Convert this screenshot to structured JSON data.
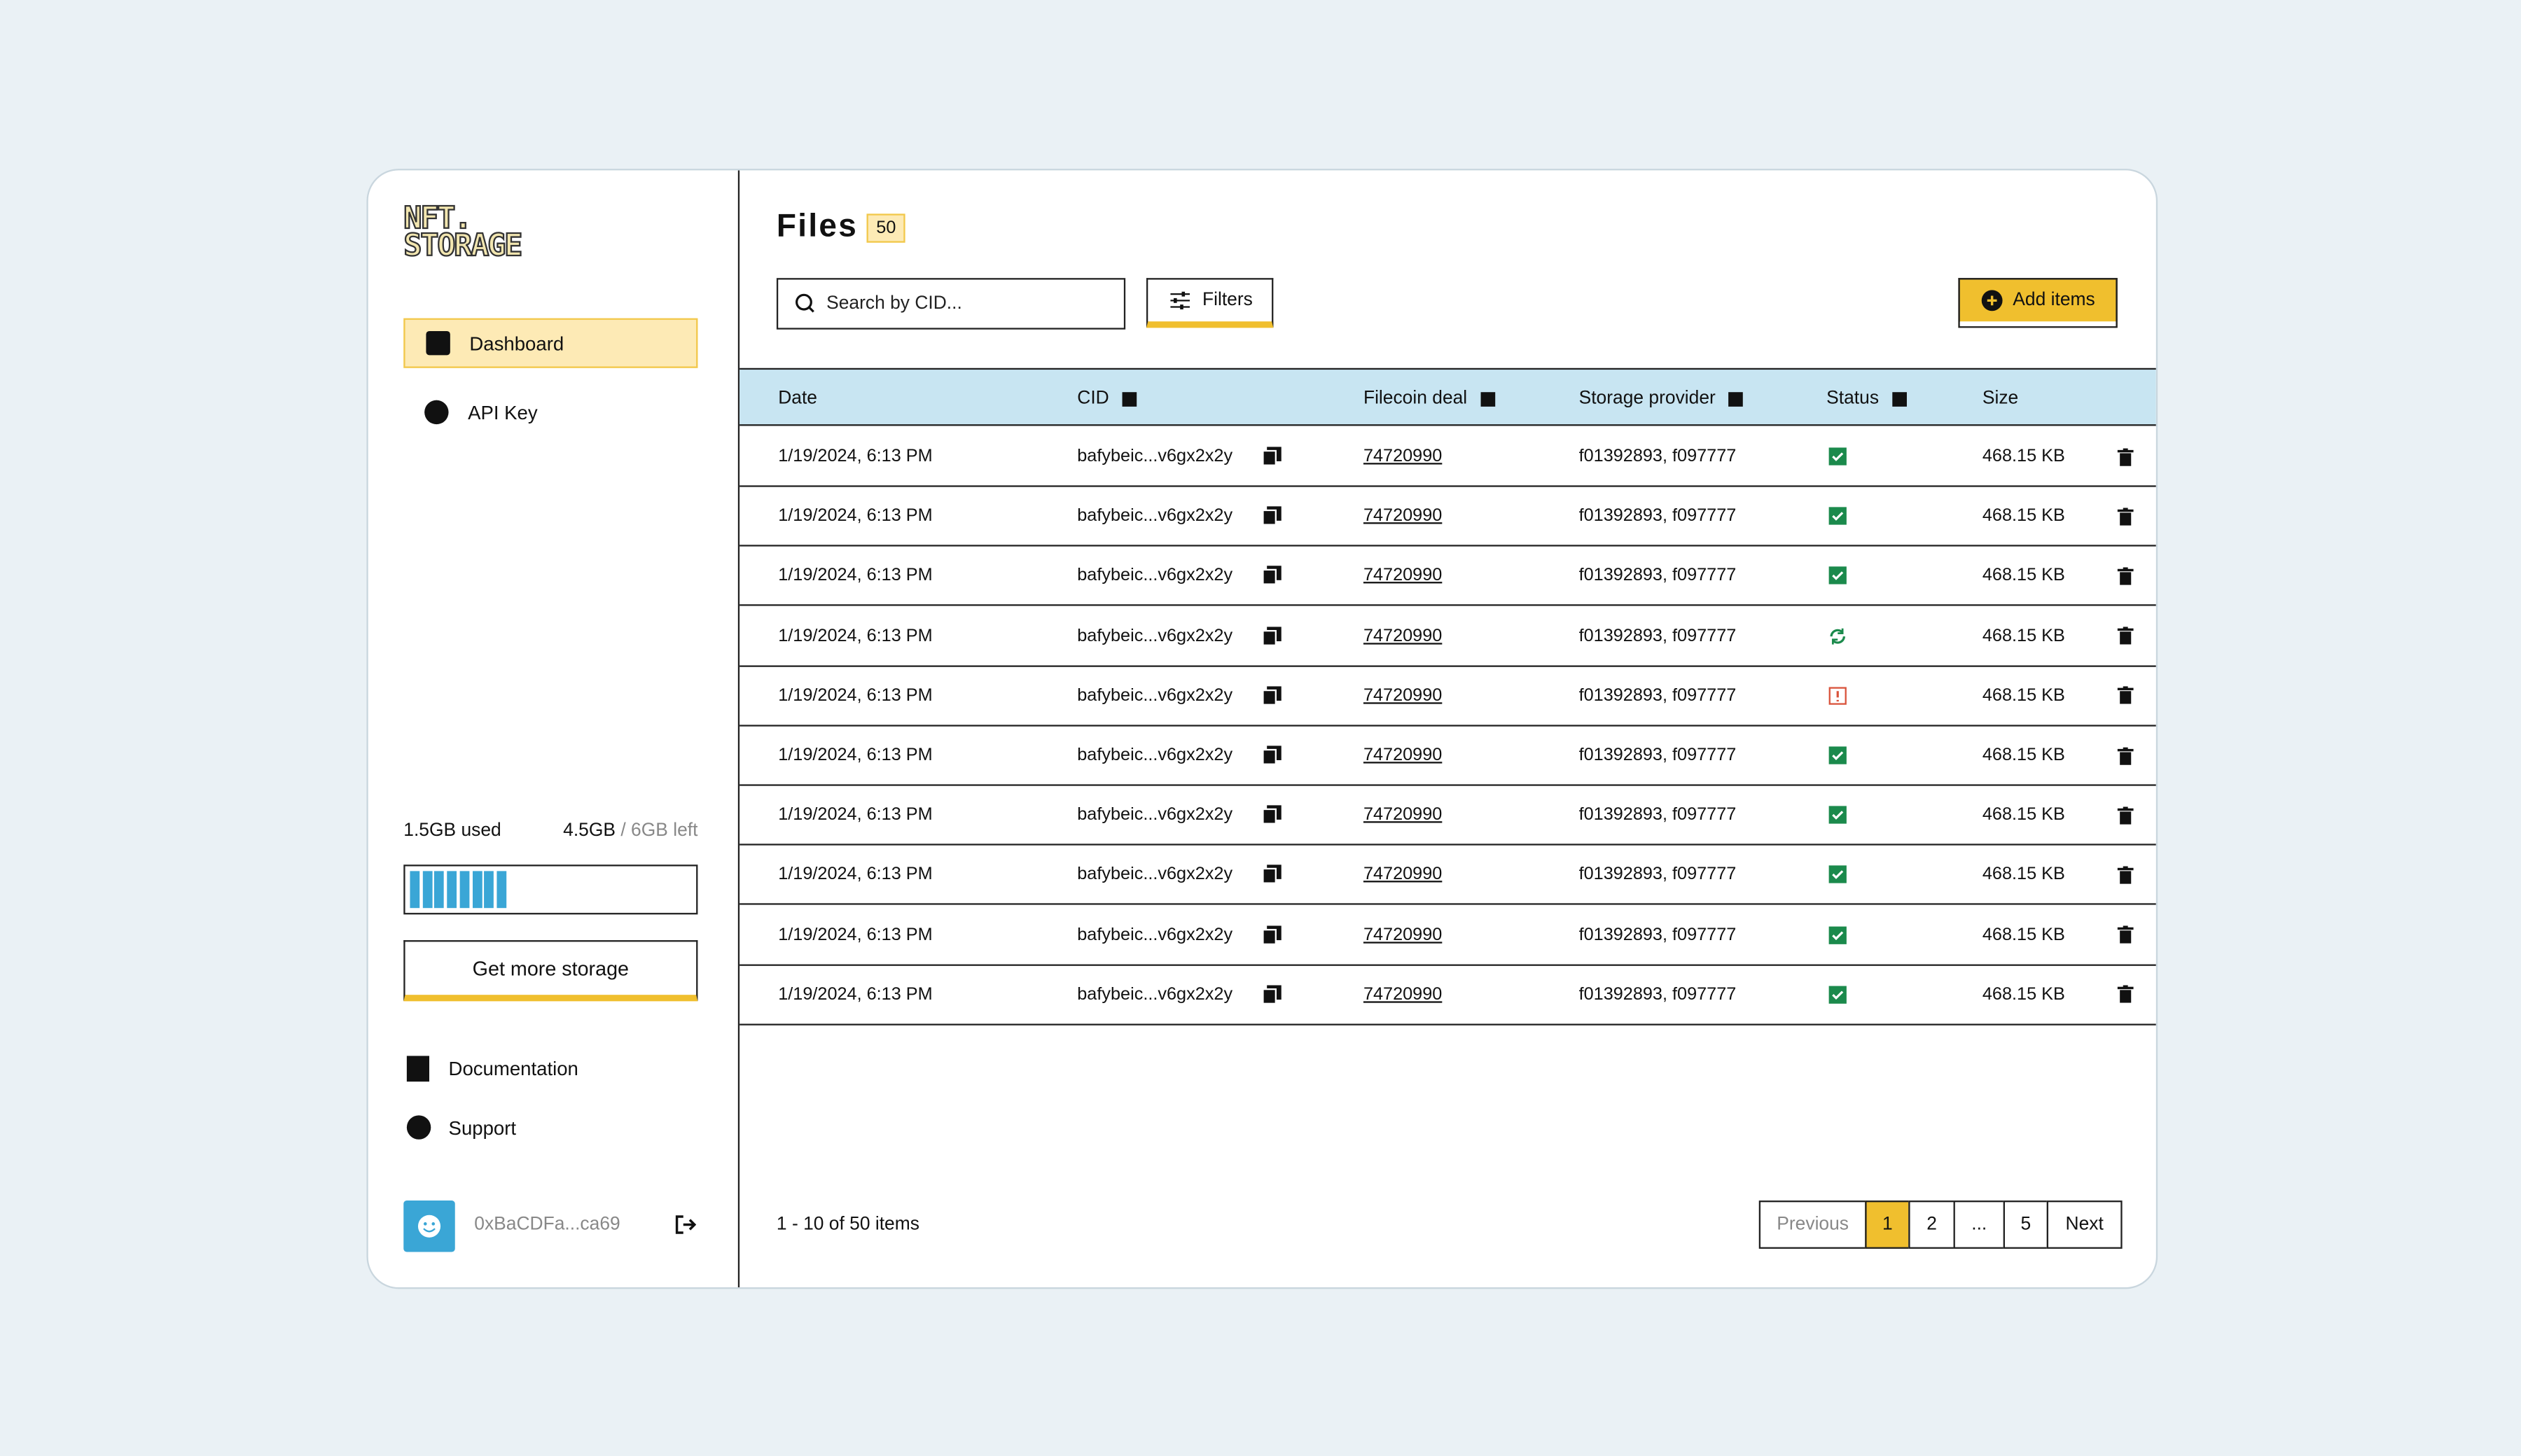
{
  "sidebar": {
    "logo": {
      "line1": "NFT.",
      "line2": "STORAGE"
    },
    "nav": [
      "Dashboard",
      "API Key"
    ],
    "storage": {
      "used": "1.5GB used",
      "left": "4.5GB",
      "total": "/ 6GB left"
    },
    "button": "Get more storage",
    "links": [
      "Documentation",
      "Support"
    ],
    "user": "0xBaCDFa...ca69"
  },
  "main": {
    "title": "Files",
    "count": "50",
    "search_placeholder": "Search by CID...",
    "filters": "Filters",
    "add": "Add items",
    "table": {
      "headers": [
        "Date",
        "CID",
        "Filecoin deal",
        "Storage provider",
        "Status",
        "Size"
      ],
      "rows": [
        {
          "date": "1/19/2024, 6:13 PM",
          "cid": "bafybeic...v6gx2x2y",
          "deal": "74720990",
          "provider": "f01392893, f097777",
          "status": "ok",
          "size": "468.15 KB"
        },
        {
          "date": "1/19/2024, 6:13 PM",
          "cid": "bafybeic...v6gx2x2y",
          "deal": "74720990",
          "provider": "f01392893, f097777",
          "status": "ok",
          "size": "468.15 KB"
        },
        {
          "date": "1/19/2024, 6:13 PM",
          "cid": "bafybeic...v6gx2x2y",
          "deal": "74720990",
          "provider": "f01392893, f097777",
          "status": "ok",
          "size": "468.15 KB"
        },
        {
          "date": "1/19/2024, 6:13 PM",
          "cid": "bafybeic...v6gx2x2y",
          "deal": "74720990",
          "provider": "f01392893, f097777",
          "status": "syncing",
          "size": "468.15 KB"
        },
        {
          "date": "1/19/2024, 6:13 PM",
          "cid": "bafybeic...v6gx2x2y",
          "deal": "74720990",
          "provider": "f01392893, f097777",
          "status": "error",
          "size": "468.15 KB"
        },
        {
          "date": "1/19/2024, 6:13 PM",
          "cid": "bafybeic...v6gx2x2y",
          "deal": "74720990",
          "provider": "f01392893, f097777",
          "status": "ok",
          "size": "468.15 KB"
        },
        {
          "date": "1/19/2024, 6:13 PM",
          "cid": "bafybeic...v6gx2x2y",
          "deal": "74720990",
          "provider": "f01392893, f097777",
          "status": "ok",
          "size": "468.15 KB"
        },
        {
          "date": "1/19/2024, 6:13 PM",
          "cid": "bafybeic...v6gx2x2y",
          "deal": "74720990",
          "provider": "f01392893, f097777",
          "status": "ok",
          "size": "468.15 KB"
        },
        {
          "date": "1/19/2024, 6:13 PM",
          "cid": "bafybeic...v6gx2x2y",
          "deal": "74720990",
          "provider": "f01392893, f097777",
          "status": "ok",
          "size": "468.15 KB"
        },
        {
          "date": "1/19/2024, 6:13 PM",
          "cid": "bafybeic...v6gx2x2y",
          "deal": "74720990",
          "provider": "f01392893, f097777",
          "status": "ok",
          "size": "468.15 KB"
        }
      ]
    },
    "summary": "1 - 10 of 50 items",
    "pagination": [
      "Previous",
      "1",
      "2",
      "...",
      "5",
      "Next"
    ]
  }
}
